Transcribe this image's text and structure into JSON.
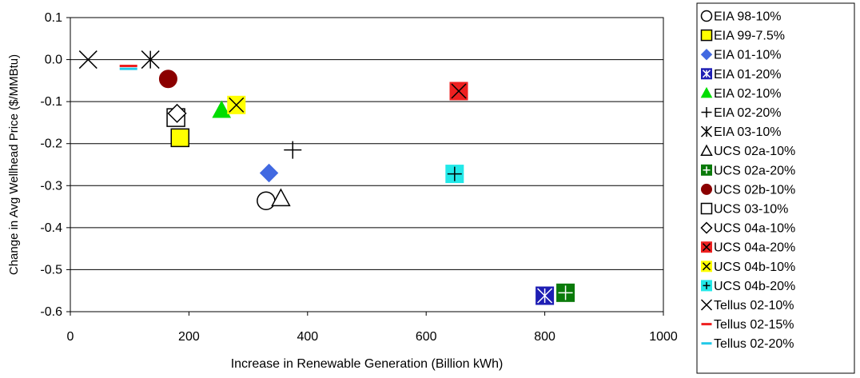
{
  "chart_data": {
    "type": "scatter",
    "title": "",
    "xlabel": "Increase in Renewable Generation (Billion kWh)",
    "ylabel": "Change in Avg Wellhead Price ($/MMBtu)",
    "xlim": [
      0,
      1000
    ],
    "ylim": [
      -0.6,
      0.1
    ],
    "x_ticks": [
      "0",
      "200",
      "400",
      "600",
      "800",
      "1000"
    ],
    "y_ticks": [
      "0.1",
      "0.0",
      "-0.1",
      "-0.2",
      "-0.3",
      "-0.4",
      "-0.5",
      "-0.6"
    ],
    "grid": "horizontal",
    "legend_position": "right",
    "series": [
      {
        "name": "EIA 98-10%",
        "marker": "circle-open",
        "color": "#000000",
        "x": [
          330
        ],
        "y": [
          -0.336
        ]
      },
      {
        "name": "EIA 99-7.5%",
        "marker": "square-filled",
        "color": "#ffff00",
        "x": [
          185
        ],
        "y": [
          -0.186
        ]
      },
      {
        "name": "EIA 01-10%",
        "marker": "diamond-filled",
        "color": "#4169e1",
        "x": [
          335
        ],
        "y": [
          -0.27
        ]
      },
      {
        "name": "EIA 01-20%",
        "marker": "square-asterisk",
        "color": "#1e1eb4",
        "x": [
          800
        ],
        "y": [
          -0.562
        ]
      },
      {
        "name": "EIA 02-10%",
        "marker": "triangle-filled",
        "color": "#00dd00",
        "x": [
          255
        ],
        "y": [
          -0.12
        ]
      },
      {
        "name": "EIA 02-20%",
        "marker": "plus",
        "color": "#000000",
        "x": [
          375
        ],
        "y": [
          -0.215
        ]
      },
      {
        "name": "EIA 03-10%",
        "marker": "asterisk",
        "color": "#000000",
        "x": [
          135
        ],
        "y": [
          0.0
        ]
      },
      {
        "name": "UCS 02a-10%",
        "marker": "triangle-open",
        "color": "#000000",
        "x": [
          355
        ],
        "y": [
          -0.33
        ]
      },
      {
        "name": "UCS 02a-20%",
        "marker": "square-plus",
        "color": "#0a7a0a",
        "x": [
          835
        ],
        "y": [
          -0.555
        ]
      },
      {
        "name": "UCS 02b-10%",
        "marker": "circle-filled",
        "color": "#8b0000",
        "x": [
          165
        ],
        "y": [
          -0.046
        ]
      },
      {
        "name": "UCS 03-10%",
        "marker": "square-open",
        "color": "#000000",
        "x": [
          178
        ],
        "y": [
          -0.138
        ]
      },
      {
        "name": "UCS 04a-10%",
        "marker": "diamond-open",
        "color": "#000000",
        "x": [
          180
        ],
        "y": [
          -0.128
        ]
      },
      {
        "name": "UCS 04a-20%",
        "marker": "square-x",
        "color": "#ee2020",
        "x": [
          655
        ],
        "y": [
          -0.075
        ]
      },
      {
        "name": "UCS 04b-10%",
        "marker": "square-x",
        "color": "#ffff00",
        "x": [
          280
        ],
        "y": [
          -0.108
        ]
      },
      {
        "name": "UCS 04b-20%",
        "marker": "square-plus",
        "color": "#22e8e8",
        "x": [
          648
        ],
        "y": [
          -0.272
        ]
      },
      {
        "name": "Tellus 02-10%",
        "marker": "x",
        "color": "#000000",
        "x": [
          30
        ],
        "y": [
          0.0
        ]
      },
      {
        "name": "Tellus 02-15%",
        "marker": "dash",
        "color": "#ee2020",
        "x": [
          98
        ],
        "y": [
          -0.015
        ]
      },
      {
        "name": "Tellus 02-20%",
        "marker": "dash",
        "color": "#22c8e8",
        "x": [
          98
        ],
        "y": [
          -0.022
        ]
      }
    ]
  }
}
